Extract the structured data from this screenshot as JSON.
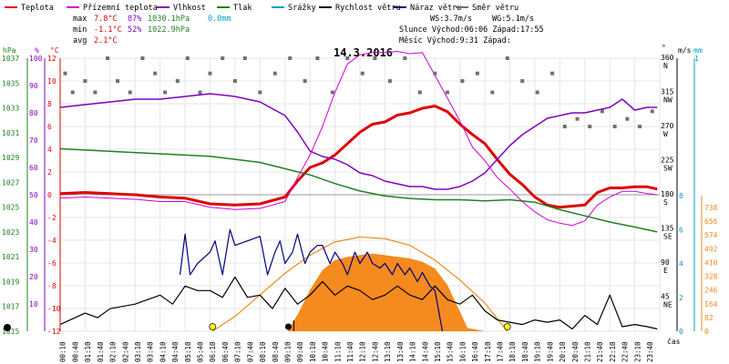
{
  "legend": [
    {
      "label": "Teplota",
      "color": "#e00000"
    },
    {
      "label": "Přízemní teplota",
      "color": "#d000d0"
    },
    {
      "label": "Vlhkost",
      "color": "#8000c0"
    },
    {
      "label": "Tlak",
      "color": "#208020"
    },
    {
      "label": "Srážky",
      "color": "#00a0c0"
    },
    {
      "label": "Rychlost větru",
      "color": "#000000"
    },
    {
      "label": "Náraz větru",
      "color": "#000080"
    },
    {
      "label": "Směr větru",
      "color": "#707070"
    }
  ],
  "stats": {
    "max_label": "max",
    "min_label": "min",
    "avg_label": "avg",
    "max_temp": "7.8°C",
    "max_hum": "87%",
    "max_press": "1030.1hPa",
    "max_rain": "0.0mm",
    "min_temp": "-1.1°C",
    "min_hum": "52%",
    "min_press": "1022.9hPa",
    "avg_temp": "2.1°C"
  },
  "wind": {
    "ws": "WS:3.7m/s",
    "wg": "WG:5.1m/s"
  },
  "sun": {
    "row": "Slunce Východ:06:06  Západ:17:55"
  },
  "moon": {
    "row": "Měsíc  Východ:9:31   Západ:"
  },
  "title": "14.3.2016",
  "axes": {
    "left_press_unit": "hPa",
    "left_hum_unit": "%",
    "left_temp_unit": "°C",
    "right_dir_unit": "°",
    "right_speed_unit": "m/s",
    "right_rain_unit": "mm",
    "right_rain_top": "1",
    "x_unit": "čas"
  },
  "chart_data": {
    "type": "line",
    "title": "14.3.2016",
    "x_labels": [
      "00:10",
      "00:40",
      "01:10",
      "01:40",
      "02:10",
      "02:40",
      "03:10",
      "03:40",
      "04:10",
      "04:40",
      "05:10",
      "05:40",
      "06:10",
      "06:40",
      "07:10",
      "07:40",
      "08:10",
      "08:40",
      "09:10",
      "09:40",
      "10:10",
      "10:40",
      "11:10",
      "11:40",
      "12:10",
      "12:40",
      "13:10",
      "13:40",
      "14:10",
      "14:40",
      "15:10",
      "15:40",
      "16:10",
      "16:40",
      "17:10",
      "17:40",
      "18:10",
      "18:40",
      "19:10",
      "19:40",
      "20:10",
      "20:40",
      "21:10",
      "21:40",
      "22:10",
      "22:40",
      "23:10",
      "23:40"
    ],
    "temp_ticks": [
      "12",
      "10",
      "8",
      "6",
      "4",
      "2",
      "0",
      "-2",
      "-4",
      "-6",
      "-8",
      "-10",
      "-12"
    ],
    "hum_ticks": [
      "100",
      "90",
      "80",
      "70",
      "60",
      "50",
      "40",
      "30",
      "20",
      "10"
    ],
    "press_ticks": [
      "1037",
      "1035",
      "1033",
      "1031",
      "1029",
      "1027",
      "1025",
      "1023",
      "1021",
      "1019",
      "1017",
      "1015"
    ],
    "dir_ticks": [
      {
        "deg": "360",
        "dir": "N"
      },
      {
        "deg": "315",
        "dir": "NW"
      },
      {
        "deg": "270",
        "dir": "W"
      },
      {
        "deg": "225",
        "dir": "SW"
      },
      {
        "deg": "180",
        "dir": "S"
      },
      {
        "deg": "135",
        "dir": "SE"
      },
      {
        "deg": "90",
        "dir": "E"
      },
      {
        "deg": "45",
        "dir": "NE"
      }
    ],
    "speed_ticks": [
      "8",
      "6",
      "4",
      "2",
      "0"
    ],
    "rad_ticks": [
      "738",
      "656",
      "574",
      "492",
      "410",
      "328",
      "246",
      "164",
      "82",
      "0"
    ],
    "series": [
      {
        "name": "Teplota",
        "hours": [
          0,
          1,
          2,
          3,
          4,
          5,
          6,
          7,
          8,
          9,
          9.5,
          10,
          10.5,
          11,
          11.5,
          12,
          12.5,
          13,
          13.5,
          14,
          14.5,
          15,
          15.5,
          16,
          16.5,
          17,
          17.5,
          18,
          18.5,
          19,
          19.5,
          20,
          20.5,
          21,
          21.5,
          22,
          22.5,
          23,
          23.5,
          23.9
        ],
        "values": [
          0.1,
          0.2,
          0.1,
          0,
          -0.2,
          -0.3,
          -0.8,
          -0.9,
          -0.8,
          -0.2,
          1.2,
          2.4,
          2.8,
          3.5,
          4.5,
          5.5,
          6.2,
          6.4,
          7,
          7.2,
          7.6,
          7.8,
          7.3,
          6.2,
          5.3,
          4.5,
          3.1,
          1.8,
          0.9,
          -0.2,
          -0.9,
          -1.1,
          -1,
          -0.9,
          0.2,
          0.6,
          0.6,
          0.7,
          0.7,
          0.5
        ]
      },
      {
        "name": "Přízemní teplota",
        "hours": [
          0,
          1,
          2,
          3,
          4,
          5,
          6,
          7,
          8,
          9,
          9.5,
          10,
          10.5,
          11,
          11.5,
          12,
          12.5,
          13,
          13.5,
          14,
          14.5,
          15,
          15.5,
          16,
          16.5,
          17,
          17.5,
          18,
          18.5,
          19,
          19.5,
          20,
          20.5,
          21,
          21.5,
          22,
          22.5,
          23,
          23.5,
          23.9
        ],
        "values": [
          -0.3,
          -0.2,
          -0.3,
          -0.4,
          -0.6,
          -0.6,
          -1.1,
          -1.3,
          -1.2,
          -0.6,
          1.5,
          3.5,
          6,
          9,
          11.5,
          12.3,
          12.5,
          12.5,
          12.6,
          12.4,
          12.5,
          10.5,
          8.5,
          6.5,
          4.2,
          3,
          1.5,
          0.5,
          -0.6,
          -1.5,
          -2.2,
          -2.5,
          -2.7,
          -2.3,
          -0.9,
          -0.2,
          0.3,
          0.3,
          0.1,
          0
        ]
      },
      {
        "name": "Vlhkost",
        "hours": [
          0,
          1,
          2,
          3,
          4,
          5,
          6,
          7,
          8,
          9,
          9.5,
          10,
          10.5,
          11,
          11.5,
          12,
          12.5,
          13,
          13.5,
          14,
          14.5,
          15,
          15.5,
          16,
          16.5,
          17,
          17.5,
          18,
          18.5,
          19,
          19.5,
          20,
          20.5,
          21,
          21.5,
          22,
          22.5,
          23,
          23.5,
          23.9
        ],
        "values": [
          82,
          83,
          84,
          85,
          85,
          86,
          87,
          86,
          84,
          79,
          73,
          66,
          64,
          63,
          61,
          58,
          57,
          55,
          54,
          53,
          53,
          52,
          52,
          53,
          55,
          58,
          63,
          68,
          72,
          75,
          78,
          79,
          80,
          80,
          81,
          82,
          85,
          81,
          82,
          82
        ]
      },
      {
        "name": "Tlak",
        "hours": [
          0,
          2,
          4,
          6,
          8,
          9,
          10,
          11,
          12,
          13,
          14,
          15,
          16,
          17,
          18,
          19,
          20,
          21,
          22,
          23,
          23.9
        ],
        "values": [
          1029.7,
          1029.5,
          1029.3,
          1029.1,
          1028.6,
          1028.1,
          1027.6,
          1026.9,
          1026.3,
          1025.9,
          1025.7,
          1025.6,
          1025.6,
          1025.5,
          1025.6,
          1025.4,
          1024.8,
          1024.3,
          1023.8,
          1023.4,
          1023.0
        ]
      },
      {
        "name": "Rychlost větru",
        "hours": [
          0,
          1,
          1.5,
          2,
          3,
          4,
          4.5,
          5,
          5.5,
          6,
          6.5,
          7,
          7.5,
          8,
          8.5,
          9,
          9.5,
          10,
          10.5,
          11,
          11.5,
          12,
          12.5,
          13,
          13.5,
          14,
          14.5,
          15,
          15.5,
          16,
          16.5,
          17,
          17.5,
          18,
          18.5,
          19,
          19.5,
          20,
          20.5,
          21,
          21.5,
          22,
          22.5,
          23,
          23.5,
          23.9
        ],
        "values": [
          0.3,
          0.8,
          0.6,
          1.0,
          1.2,
          1.6,
          1.2,
          2.0,
          1.8,
          1.8,
          1.5,
          2.4,
          1.5,
          1.6,
          1.0,
          1.9,
          1.2,
          1.6,
          2.2,
          1.6,
          2.0,
          1.8,
          1.4,
          1.6,
          2.0,
          1.6,
          1.4,
          2.0,
          1.4,
          1.2,
          1.6,
          0.9,
          0.5,
          0.4,
          0.3,
          0.5,
          0.4,
          0.5,
          0.1,
          0.7,
          0.3,
          1.6,
          0.2,
          0.3,
          0.2,
          0.1
        ]
      },
      {
        "name": "Náraz větru",
        "hours": [
          4.8,
          5,
          5.2,
          5.5,
          6,
          6.2,
          6.5,
          6.8,
          7,
          7.5,
          8,
          8.3,
          8.6,
          8.8,
          9,
          9.3,
          9.5,
          9.8,
          10,
          10.3,
          10.5,
          10.8,
          11,
          11.3,
          11.5,
          11.8,
          12,
          12.3,
          12.5,
          12.8,
          13,
          13.3,
          13.5,
          13.8,
          14,
          14.3,
          14.5,
          14.8,
          15,
          15.3
        ],
        "values": [
          2.5,
          4.3,
          2.5,
          3.0,
          3.5,
          4.0,
          2.5,
          4.5,
          3.8,
          4.0,
          4.2,
          2.5,
          3.5,
          4.0,
          3.0,
          3.5,
          4.3,
          3.0,
          3.5,
          3.8,
          3.8,
          3.0,
          3.5,
          3.0,
          2.5,
          3.5,
          3.0,
          3.5,
          3.0,
          2.8,
          3.0,
          2.5,
          3.0,
          2.5,
          2.8,
          2.2,
          2.6,
          2.0,
          1.8,
          0
        ]
      },
      {
        "name": "Směr větru",
        "type": "scatter",
        "hours": [
          0.2,
          0.5,
          1,
          1.4,
          1.9,
          2.3,
          2.8,
          3.3,
          3.8,
          4.2,
          4.7,
          5.1,
          5.6,
          6.0,
          6.5,
          7,
          7.4,
          8,
          8.6,
          9.2,
          9.8,
          10.3,
          10.9,
          11.5,
          12.1,
          12.6,
          13.2,
          13.8,
          14.4,
          15,
          15.5,
          16.1,
          16.7,
          17.3,
          17.9,
          18.5,
          19.1,
          19.7,
          20.2,
          20.7,
          21.2,
          21.7,
          22.2,
          22.7,
          23.2,
          23.7
        ],
        "values": [
          340,
          315,
          330,
          315,
          360,
          330,
          315,
          360,
          340,
          315,
          330,
          360,
          315,
          340,
          360,
          330,
          360,
          315,
          340,
          360,
          330,
          360,
          315,
          360,
          340,
          360,
          330,
          360,
          315,
          340,
          315,
          330,
          340,
          315,
          360,
          330,
          315,
          340,
          270,
          280,
          270,
          290,
          270,
          280,
          270,
          290
        ]
      }
    ],
    "solar_radiation": {
      "name": "solar",
      "hours": [
        9.1,
        9.5,
        10,
        10.5,
        11,
        11.5,
        12,
        12.5,
        13,
        13.5,
        14,
        14.5,
        15,
        15.5,
        16,
        16.3,
        17
      ],
      "values": [
        0,
        100,
        250,
        370,
        430,
        450,
        460,
        470,
        460,
        450,
        440,
        420,
        380,
        280,
        120,
        20,
        0
      ]
    },
    "theoretical_radiation": {
      "hours": [
        6.1,
        7,
        8,
        9,
        10,
        11,
        12,
        13,
        14,
        15,
        16,
        17,
        17.9
      ],
      "values": [
        0,
        90,
        220,
        350,
        460,
        540,
        570,
        560,
        520,
        430,
        310,
        170,
        0
      ]
    }
  }
}
